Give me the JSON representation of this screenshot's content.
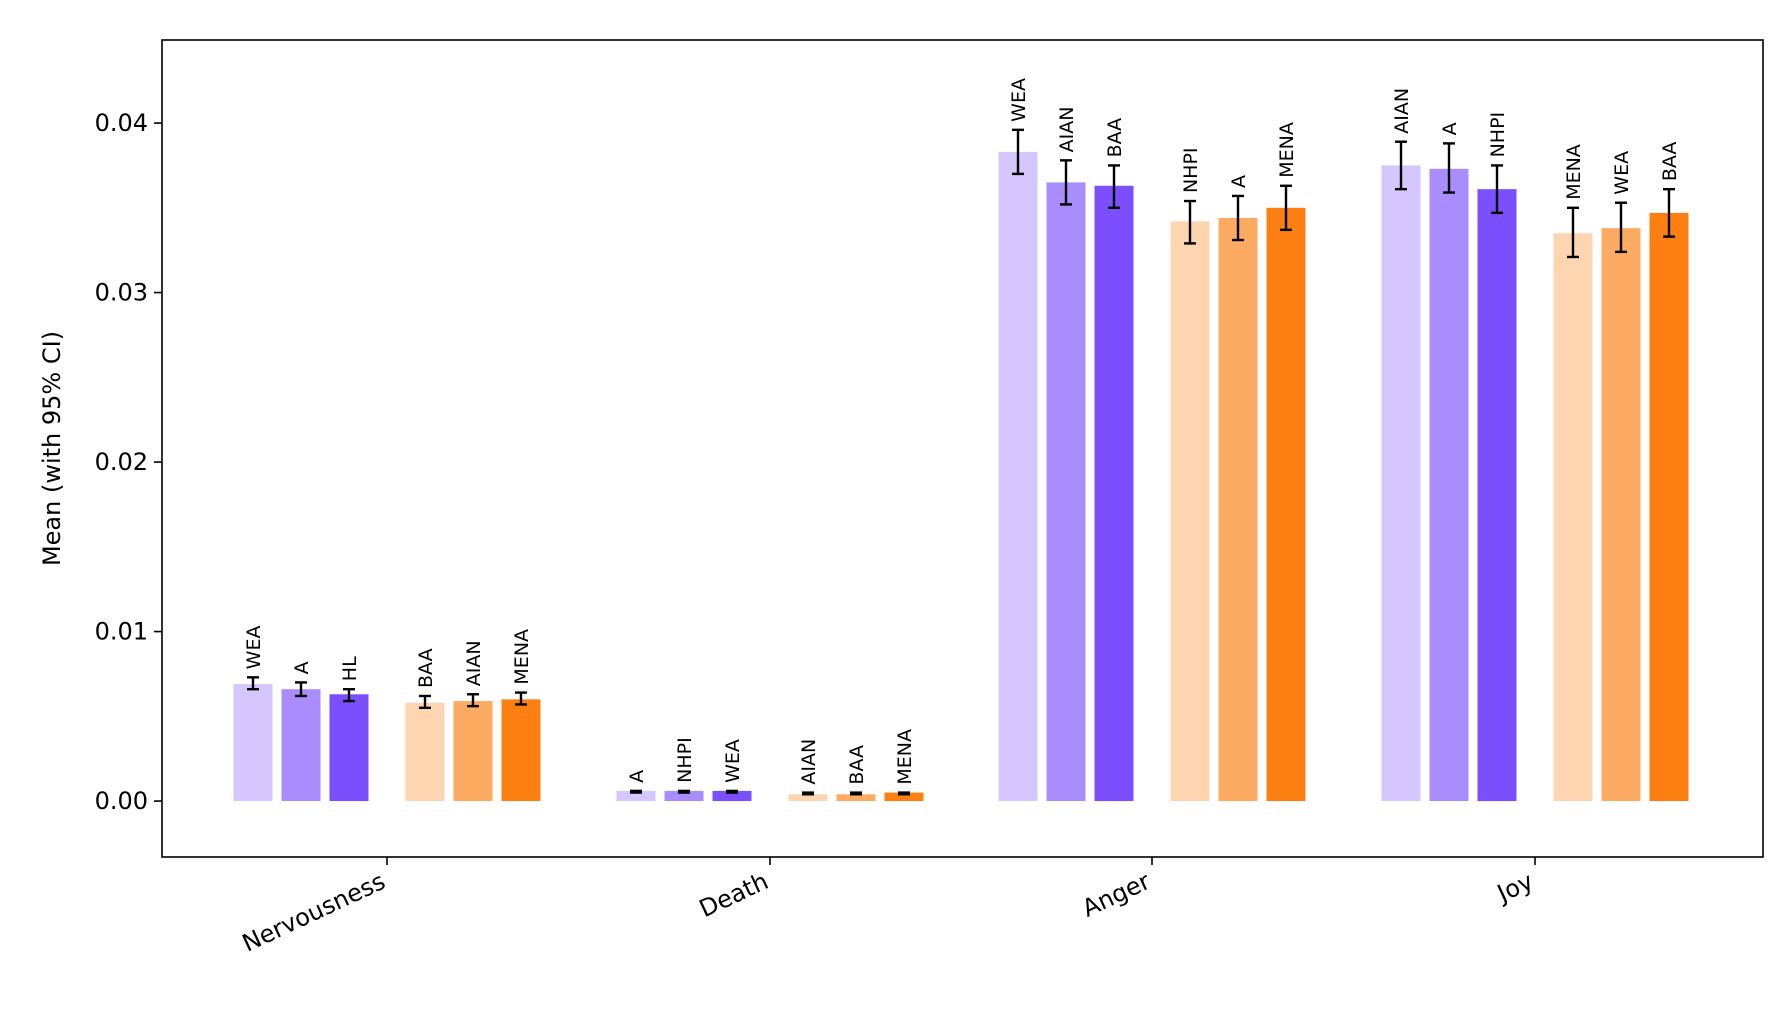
{
  "chart_data": {
    "type": "bar",
    "ylabel": "Mean (with 95% CI)",
    "xlabel": "",
    "ylim": [
      -0.0033,
      0.0449
    ],
    "yticks": [
      0.0,
      0.01,
      0.02,
      0.03,
      0.04
    ],
    "ytick_labels": [
      "0.00",
      "0.01",
      "0.02",
      "0.03",
      "0.04"
    ],
    "grid": false,
    "legend": "none",
    "categories": [
      "Nervousness",
      "Death",
      "Anger",
      "Joy"
    ],
    "groups": [
      {
        "category": "Nervousness",
        "bars": [
          {
            "label": "WEA",
            "value": 0.0069,
            "ci": [
              0.0066,
              0.0073
            ],
            "color": "#d5c6fd"
          },
          {
            "label": "A",
            "value": 0.0066,
            "ci": [
              0.0062,
              0.007
            ],
            "color": "#aa8dfd"
          },
          {
            "label": "HL",
            "value": 0.0063,
            "ci": [
              0.0059,
              0.0066
            ],
            "color": "#7b4ffd"
          },
          {
            "label": "BAA",
            "value": 0.0058,
            "ci": [
              0.0055,
              0.0062
            ],
            "color": "#fdd5b1"
          },
          {
            "label": "AIAN",
            "value": 0.0059,
            "ci": [
              0.0056,
              0.0063
            ],
            "color": "#fdab63"
          },
          {
            "label": "MENA",
            "value": 0.006,
            "ci": [
              0.0057,
              0.0064
            ],
            "color": "#fd7f11"
          }
        ]
      },
      {
        "category": "Death",
        "bars": [
          {
            "label": "A",
            "value": 0.0006,
            "ci": [
              0.0005,
              0.0006
            ],
            "color": "#d5c6fd"
          },
          {
            "label": "NHPI",
            "value": 0.0006,
            "ci": [
              0.0005,
              0.0006
            ],
            "color": "#aa8dfd"
          },
          {
            "label": "WEA",
            "value": 0.0006,
            "ci": [
              0.0005,
              0.0006
            ],
            "color": "#7b4ffd"
          },
          {
            "label": "AIAN",
            "value": 0.0004,
            "ci": [
              0.0004,
              0.0005
            ],
            "color": "#fdd5b1"
          },
          {
            "label": "BAA",
            "value": 0.0004,
            "ci": [
              0.0004,
              0.0005
            ],
            "color": "#fdab63"
          },
          {
            "label": "MENA",
            "value": 0.0005,
            "ci": [
              0.0004,
              0.0005
            ],
            "color": "#fd7f11"
          }
        ]
      },
      {
        "category": "Anger",
        "bars": [
          {
            "label": "WEA",
            "value": 0.0383,
            "ci": [
              0.037,
              0.0396
            ],
            "color": "#d5c6fd"
          },
          {
            "label": "AIAN",
            "value": 0.0365,
            "ci": [
              0.0352,
              0.0378
            ],
            "color": "#aa8dfd"
          },
          {
            "label": "BAA",
            "value": 0.0363,
            "ci": [
              0.035,
              0.0375
            ],
            "color": "#7b4ffd"
          },
          {
            "label": "NHPI",
            "value": 0.0342,
            "ci": [
              0.0329,
              0.0354
            ],
            "color": "#fdd5b1"
          },
          {
            "label": "A",
            "value": 0.0344,
            "ci": [
              0.0331,
              0.0357
            ],
            "color": "#fdab63"
          },
          {
            "label": "MENA",
            "value": 0.035,
            "ci": [
              0.0337,
              0.0363
            ],
            "color": "#fd7f11"
          }
        ]
      },
      {
        "category": "Joy",
        "bars": [
          {
            "label": "AIAN",
            "value": 0.0375,
            "ci": [
              0.0361,
              0.0389
            ],
            "color": "#d5c6fd"
          },
          {
            "label": "A",
            "value": 0.0373,
            "ci": [
              0.0359,
              0.0388
            ],
            "color": "#aa8dfd"
          },
          {
            "label": "NHPI",
            "value": 0.0361,
            "ci": [
              0.0347,
              0.0375
            ],
            "color": "#7b4ffd"
          },
          {
            "label": "MENA",
            "value": 0.0335,
            "ci": [
              0.0321,
              0.035
            ],
            "color": "#fdd5b1"
          },
          {
            "label": "WEA",
            "value": 0.0338,
            "ci": [
              0.0324,
              0.0353
            ],
            "color": "#fdab63"
          },
          {
            "label": "BAA",
            "value": 0.0347,
            "ci": [
              0.0333,
              0.0361
            ],
            "color": "#fd7f11"
          }
        ]
      }
    ]
  }
}
